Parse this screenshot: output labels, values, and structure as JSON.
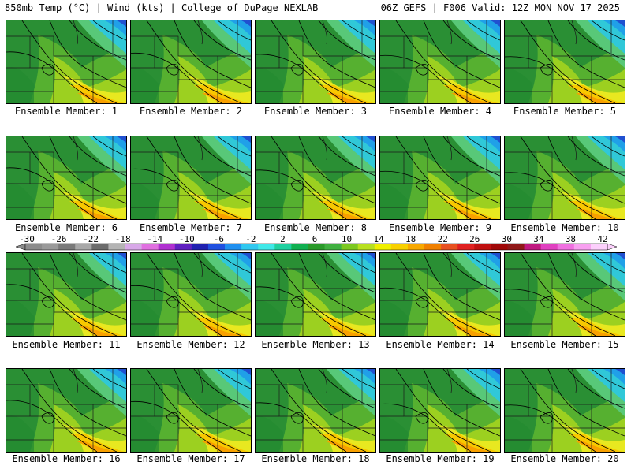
{
  "header": {
    "left_title": "850mb Temp (°C) | Wind (kts) | College of DuPage NEXLAB",
    "right_title": "06Z GEFS | F006 Valid: 12Z MON NOV 17 2025"
  },
  "panels": [
    {
      "label": "Ensemble Member: 1"
    },
    {
      "label": "Ensemble Member: 2"
    },
    {
      "label": "Ensemble Member: 3"
    },
    {
      "label": "Ensemble Member: 4"
    },
    {
      "label": "Ensemble Member: 5"
    },
    {
      "label": "Ensemble Member: 6"
    },
    {
      "label": "Ensemble Member: 7"
    },
    {
      "label": "Ensemble Member: 8"
    },
    {
      "label": "Ensemble Member: 9"
    },
    {
      "label": "Ensemble Member: 10"
    },
    {
      "label": "Ensemble Member: 11"
    },
    {
      "label": "Ensemble Member: 12"
    },
    {
      "label": "Ensemble Member: 13"
    },
    {
      "label": "Ensemble Member: 14"
    },
    {
      "label": "Ensemble Member: 15"
    },
    {
      "label": "Ensemble Member: 16"
    },
    {
      "label": "Ensemble Member: 17"
    },
    {
      "label": "Ensemble Member: 18"
    },
    {
      "label": "Ensemble Member: 19"
    },
    {
      "label": "Ensemble Member: 20"
    }
  ],
  "colorbar": {
    "ticks": [
      "-30",
      "-26",
      "-22",
      "-18",
      "-14",
      "-10",
      "-6",
      "-2",
      "2",
      "6",
      "10",
      "14",
      "18",
      "22",
      "26",
      "30",
      "34",
      "38",
      "42"
    ],
    "colors": [
      "#8c8c8c",
      "#9a9a9a",
      "#7a7a7a",
      "#a8a8a8",
      "#6c6c6c",
      "#b4b4b4",
      "#d8a8e8",
      "#e070e0",
      "#b030d0",
      "#6020c0",
      "#2020b0",
      "#2050e0",
      "#2090f0",
      "#30c8f0",
      "#40e8e8",
      "#20d0a0",
      "#10b050",
      "#2a9a2a",
      "#40b040",
      "#7cc820",
      "#b8e020",
      "#f0f000",
      "#f8d000",
      "#f8a800",
      "#f08000",
      "#e85020",
      "#e02020",
      "#c01010",
      "#a00808",
      "#901818",
      "#c01880",
      "#e040c0",
      "#f070e0",
      "#f8a0f0",
      "#fcd0fc"
    ]
  }
}
